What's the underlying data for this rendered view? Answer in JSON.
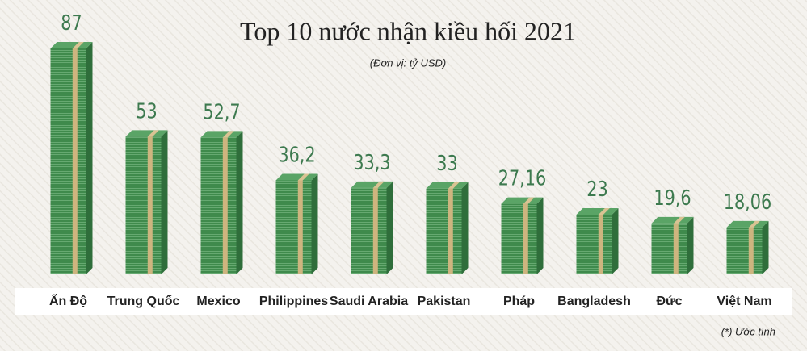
{
  "chart_data": {
    "type": "bar",
    "title": "Top 10 nước nhận kiều hối 2021",
    "subtitle": "(Đơn vị: tỷ USD)",
    "note": "(*) Ước tính",
    "categories": [
      "Ấn Độ",
      "Trung Quốc",
      "Mexico",
      "Philippines",
      "Saudi Arabia",
      "Pakistan",
      "Pháp",
      "Bangladesh",
      "Đức",
      "Việt Nam"
    ],
    "values": [
      87,
      53,
      52.7,
      36.2,
      33.3,
      33,
      27.16,
      23,
      19.6,
      18.06
    ],
    "value_labels": [
      "87",
      "53",
      "52,7",
      "36,2",
      "33,3",
      "33",
      "27,16",
      "23",
      "19,6",
      "18,06"
    ],
    "color": "#3f8a4c"
  }
}
